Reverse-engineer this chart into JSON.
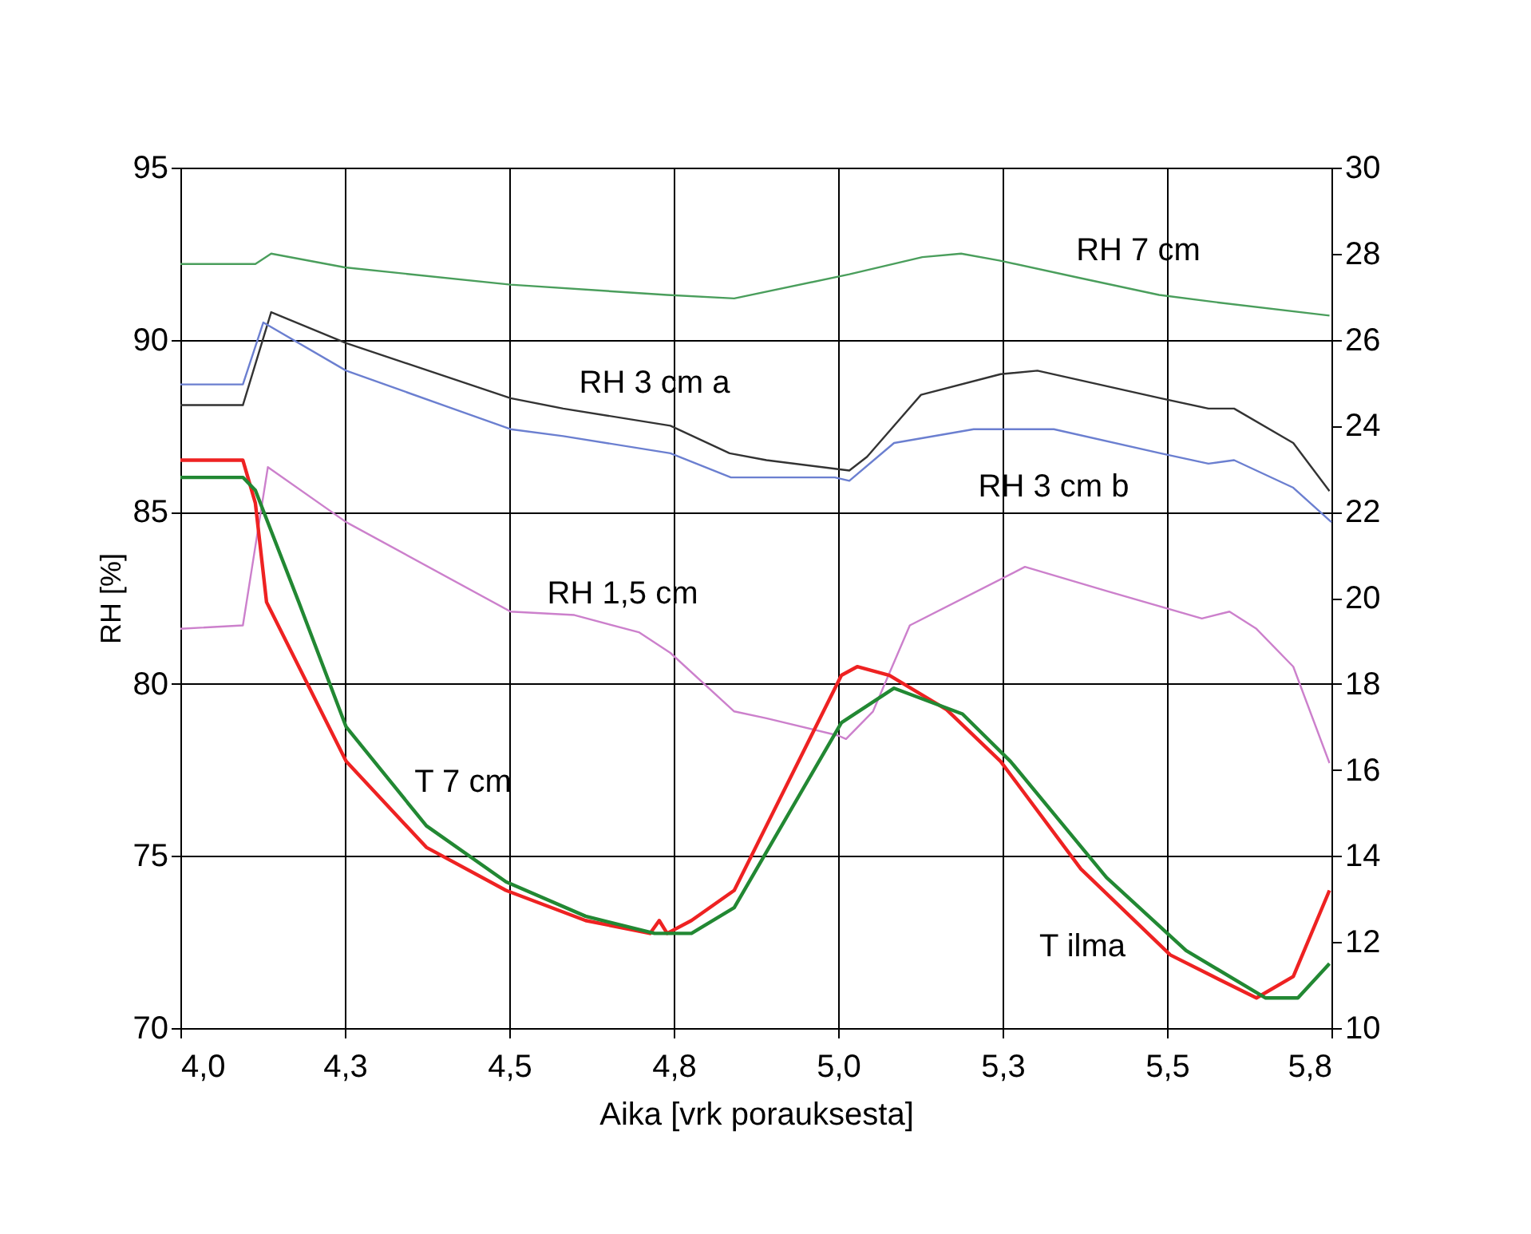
{
  "chart_data": {
    "type": "line",
    "xlabel": "Aika [vrk porauksesta]",
    "ylabel": "RH [%]",
    "xlim": [
      4.0,
      5.75
    ],
    "xticks": [
      {
        "value": 4.0,
        "label": "4,0"
      },
      {
        "value": 4.25,
        "label": "4,3"
      },
      {
        "value": 4.5,
        "label": "4,5"
      },
      {
        "value": 4.75,
        "label": "4,8"
      },
      {
        "value": 5.0,
        "label": "5,0"
      },
      {
        "value": 5.25,
        "label": "5,3"
      },
      {
        "value": 5.5,
        "label": "5,5"
      },
      {
        "value": 5.75,
        "label": "5,8"
      }
    ],
    "ylim": [
      70,
      95
    ],
    "yticks": [
      70,
      75,
      80,
      85,
      90,
      95
    ],
    "y2lim": [
      10,
      30
    ],
    "y2ticks": [
      10,
      12,
      14,
      16,
      18,
      20,
      22,
      24,
      26,
      28,
      30
    ],
    "grid": true,
    "series": [
      {
        "name": "RH 7 cm",
        "color": "#4a9e5c",
        "x": [
          4.0,
          4.114,
          4.138,
          4.25,
          4.502,
          4.74,
          4.842,
          5.017,
          5.128,
          5.187,
          5.245,
          5.366,
          5.488,
          5.57,
          5.747
        ],
        "values": [
          92.2,
          92.2,
          92.5,
          92.1,
          91.6,
          91.3,
          91.2,
          91.9,
          92.4,
          92.5,
          92.3,
          91.8,
          91.3,
          91.1,
          90.7
        ]
      },
      {
        "name": "RH 3 cm a",
        "color": "#333333",
        "x": [
          4.0,
          4.095,
          4.138,
          4.252,
          4.502,
          4.582,
          4.745,
          4.835,
          4.891,
          5.017,
          5.044,
          5.126,
          5.247,
          5.303,
          5.49,
          5.563,
          5.602,
          5.692,
          5.747
        ],
        "values": [
          88.1,
          88.1,
          90.8,
          89.9,
          88.3,
          88.0,
          87.5,
          86.7,
          86.5,
          86.2,
          86.6,
          88.4,
          89.0,
          89.1,
          88.3,
          88.0,
          88.0,
          87.0,
          85.6
        ]
      },
      {
        "name": "RH 3 cm b",
        "color": "#6b7fd0",
        "x": [
          4.0,
          4.095,
          4.126,
          4.252,
          4.502,
          4.582,
          4.745,
          4.837,
          4.995,
          5.017,
          5.085,
          5.206,
          5.328,
          5.49,
          5.563,
          5.602,
          5.692,
          5.75
        ],
        "values": [
          88.7,
          88.7,
          90.5,
          89.1,
          87.4,
          87.2,
          86.7,
          86.0,
          86.0,
          85.9,
          87.0,
          87.4,
          87.4,
          86.7,
          86.4,
          86.5,
          85.7,
          84.7
        ]
      },
      {
        "name": "RH 1,5 cm",
        "color": "#cc80cc",
        "x": [
          4.0,
          4.095,
          4.133,
          4.252,
          4.502,
          4.599,
          4.697,
          4.745,
          4.842,
          4.891,
          5.0,
          5.012,
          5.053,
          5.109,
          5.284,
          5.408,
          5.553,
          5.595,
          5.636,
          5.692,
          5.747
        ],
        "values": [
          81.6,
          81.7,
          86.3,
          84.7,
          82.1,
          82.0,
          81.5,
          80.9,
          79.2,
          79.0,
          78.5,
          78.4,
          79.2,
          81.7,
          83.4,
          82.7,
          81.9,
          82.1,
          81.6,
          80.5,
          77.7
        ]
      },
      {
        "name": "T ilma",
        "color": "#ee2222",
        "axis": "y2",
        "x": [
          4.0,
          4.095,
          4.114,
          4.131,
          4.252,
          4.374,
          4.495,
          4.616,
          4.714,
          4.728,
          4.74,
          4.777,
          4.842,
          5.005,
          5.029,
          5.078,
          5.165,
          5.247,
          5.369,
          5.505,
          5.57,
          5.636,
          5.692,
          5.747
        ],
        "values": [
          23.2,
          23.2,
          22.2,
          19.9,
          16.2,
          14.2,
          13.2,
          12.5,
          12.2,
          12.5,
          12.2,
          12.5,
          13.2,
          18.2,
          18.4,
          18.2,
          17.4,
          16.2,
          13.7,
          11.7,
          11.2,
          10.7,
          11.2,
          13.2
        ]
      },
      {
        "name": "T 7 cm",
        "color": "#228833",
        "axis": "y2",
        "x": [
          4.0,
          4.095,
          4.114,
          4.18,
          4.252,
          4.374,
          4.495,
          4.616,
          4.721,
          4.777,
          4.842,
          5.005,
          5.085,
          5.189,
          5.262,
          5.408,
          5.529,
          5.65,
          5.699,
          5.747
        ],
        "values": [
          22.8,
          22.8,
          22.5,
          19.9,
          17.0,
          14.7,
          13.4,
          12.6,
          12.2,
          12.2,
          12.8,
          17.1,
          17.9,
          17.3,
          16.2,
          13.5,
          11.8,
          10.7,
          10.7,
          11.5
        ]
      }
    ]
  }
}
